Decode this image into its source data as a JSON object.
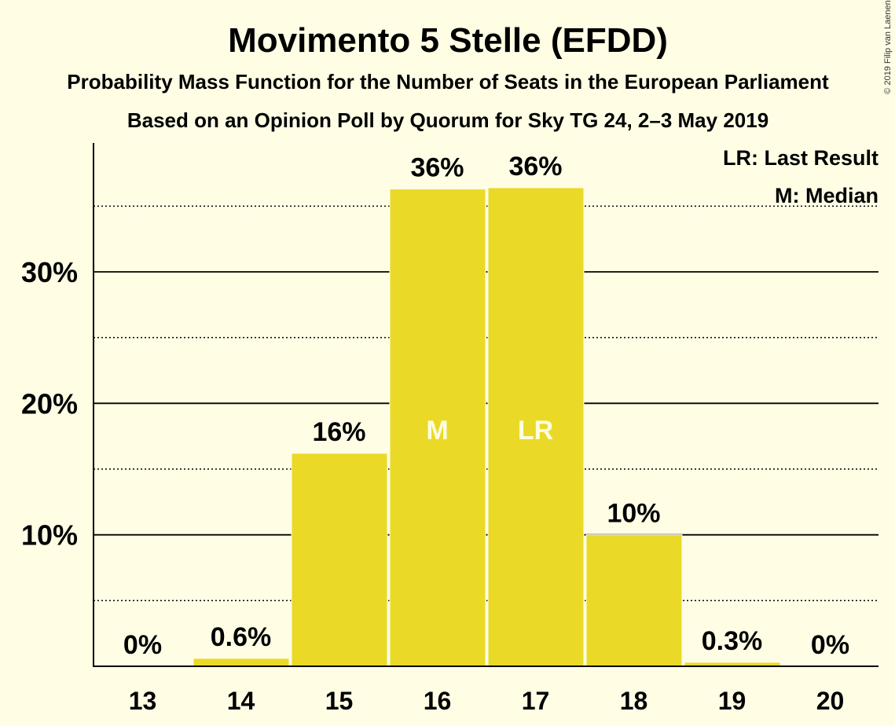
{
  "chart_data": {
    "type": "bar",
    "title": "Movimento 5 Stelle (EFDD)",
    "subtitle": "Probability Mass Function for the Number of Seats in the European Parliament",
    "subtitle2": "Based on an Opinion Poll by Quorum for Sky TG 24, 2–3 May 2019",
    "copyright": "© 2019 Filip van Laenen",
    "categories": [
      "13",
      "14",
      "15",
      "16",
      "17",
      "18",
      "19",
      "20"
    ],
    "values": [
      0,
      0.6,
      16.2,
      36.3,
      36.4,
      10.0,
      0.3,
      0
    ],
    "value_labels": [
      "0%",
      "0.6%",
      "16%",
      "36%",
      "36%",
      "10%",
      "0.3%",
      "0%"
    ],
    "inside_labels": [
      "",
      "",
      "",
      "M",
      "LR",
      "",
      "",
      ""
    ],
    "yticks": [
      10,
      20,
      30
    ],
    "ytick_labels": [
      "10%",
      "20%",
      "30%"
    ],
    "minor_gridlines": [
      5,
      15,
      25,
      35
    ],
    "ylim": [
      0,
      39.8
    ],
    "legend": [
      "LR: Last Result",
      "M: Median"
    ],
    "legend_position": "top-right",
    "bar_color": "#EBD928",
    "background_color": "#FFFEE5",
    "grid": true
  }
}
